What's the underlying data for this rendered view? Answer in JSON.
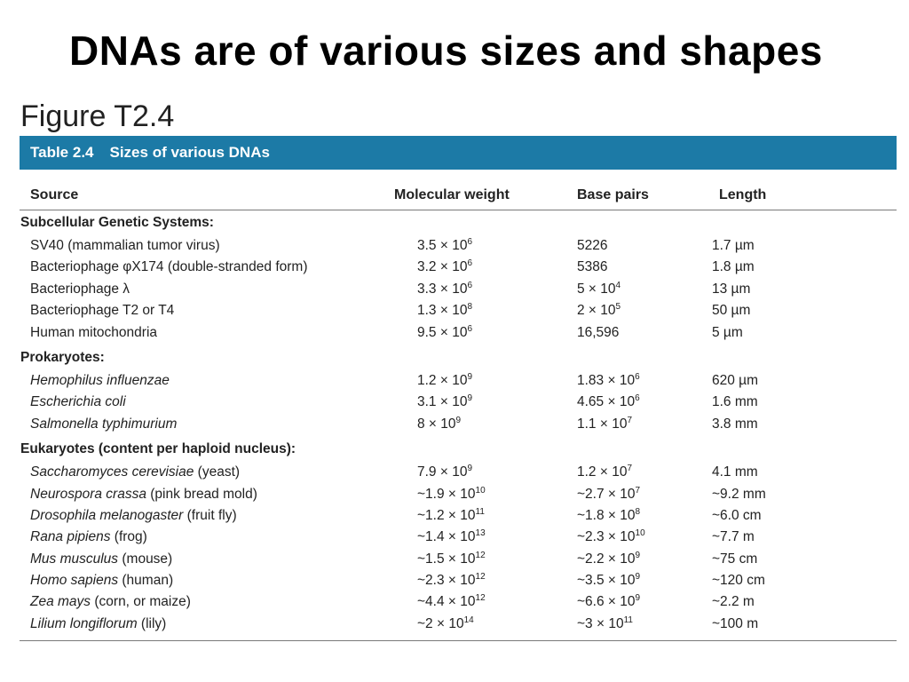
{
  "slide": {
    "title": "DNAs are of various sizes and shapes"
  },
  "figure": {
    "label": "Figure T2.4"
  },
  "table": {
    "number": "Table 2.4",
    "caption": "Sizes of various DNAs",
    "headers": {
      "source": "Source",
      "molecular_weight": "Molecular weight",
      "base_pairs": "Base pairs",
      "length": "Length"
    },
    "sections": [
      {
        "title": "Subcellular Genetic Systems:",
        "rows": [
          {
            "name": "SV40 (mammalian tumor virus)",
            "note": "",
            "italic": false,
            "mw": [
              "3.5 × 10",
              "6"
            ],
            "bp": [
              "5226",
              ""
            ],
            "len": "1.7 µm"
          },
          {
            "name": "Bacteriophage φX174 (double-stranded form)",
            "note": "",
            "italic": false,
            "mw": [
              "3.2 × 10",
              "6"
            ],
            "bp": [
              "5386",
              ""
            ],
            "len": "1.8 µm"
          },
          {
            "name": "Bacteriophage λ",
            "note": "",
            "italic": false,
            "mw": [
              "3.3 × 10",
              "6"
            ],
            "bp": [
              "5 × 10",
              "4"
            ],
            "len": "13 µm"
          },
          {
            "name": "Bacteriophage T2 or T4",
            "note": "",
            "italic": false,
            "mw": [
              "1.3 × 10",
              "8"
            ],
            "bp": [
              "2 × 10",
              "5"
            ],
            "len": "50 µm"
          },
          {
            "name": "Human mitochondria",
            "note": "",
            "italic": false,
            "mw": [
              "9.5 × 10",
              "6"
            ],
            "bp": [
              "16,596",
              ""
            ],
            "len": "5 µm"
          }
        ]
      },
      {
        "title": "Prokaryotes:",
        "rows": [
          {
            "name": "Hemophilus influenzae",
            "note": "",
            "italic": true,
            "mw": [
              "1.2 × 10",
              "9"
            ],
            "bp": [
              "1.83 × 10",
              "6"
            ],
            "len": "620 µm"
          },
          {
            "name": "Escherichia coli",
            "note": "",
            "italic": true,
            "mw": [
              "3.1 × 10",
              "9"
            ],
            "bp": [
              "4.65 × 10",
              "6"
            ],
            "len": "1.6 mm"
          },
          {
            "name": "Salmonella typhimurium",
            "note": "",
            "italic": true,
            "mw": [
              "8 × 10",
              "9"
            ],
            "bp": [
              "1.1 × 10",
              "7"
            ],
            "len": "3.8 mm"
          }
        ]
      },
      {
        "title": "Eukaryotes (content per haploid nucleus):",
        "rows": [
          {
            "name": "Saccharomyces cerevisiae",
            "note": " (yeast)",
            "italic": true,
            "mw": [
              "7.9 × 10",
              "9"
            ],
            "bp": [
              "1.2 × 10",
              "7"
            ],
            "len": "4.1 mm"
          },
          {
            "name": "Neurospora crassa",
            "note": " (pink bread mold)",
            "italic": true,
            "mw": [
              "~1.9 × 10",
              "10"
            ],
            "bp": [
              "~2.7 × 10",
              "7"
            ],
            "len": "~9.2 mm"
          },
          {
            "name": "Drosophila melanogaster",
            "note": " (fruit fly)",
            "italic": true,
            "mw": [
              "~1.2 × 10",
              "11"
            ],
            "bp": [
              "~1.8 × 10",
              "8"
            ],
            "len": "~6.0 cm"
          },
          {
            "name": "Rana pipiens",
            "note": " (frog)",
            "italic": true,
            "mw": [
              "~1.4 × 10",
              "13"
            ],
            "bp": [
              "~2.3 × 10",
              "10"
            ],
            "len": "~7.7 m"
          },
          {
            "name": "Mus musculus",
            "note": " (mouse)",
            "italic": true,
            "mw": [
              "~1.5 × 10",
              "12"
            ],
            "bp": [
              "~2.2 × 10",
              "9"
            ],
            "len": "~75 cm"
          },
          {
            "name": "Homo sapiens",
            "note": " (human)",
            "italic": true,
            "mw": [
              "~2.3 × 10",
              "12"
            ],
            "bp": [
              "~3.5 × 10",
              "9"
            ],
            "len": "~120 cm"
          },
          {
            "name": "Zea mays",
            "note": " (corn, or maize)",
            "italic": true,
            "mw": [
              "~4.4 × 10",
              "12"
            ],
            "bp": [
              "~6.6 × 10",
              "9"
            ],
            "len": "~2.2 m"
          },
          {
            "name": "Lilium longiflorum",
            "note": " (lily)",
            "italic": true,
            "mw": [
              "~2 × 10",
              "14"
            ],
            "bp": [
              "~3 × 10",
              "11"
            ],
            "len": "~100 m"
          }
        ]
      }
    ]
  },
  "colors": {
    "banner": "#1c7aa6"
  }
}
